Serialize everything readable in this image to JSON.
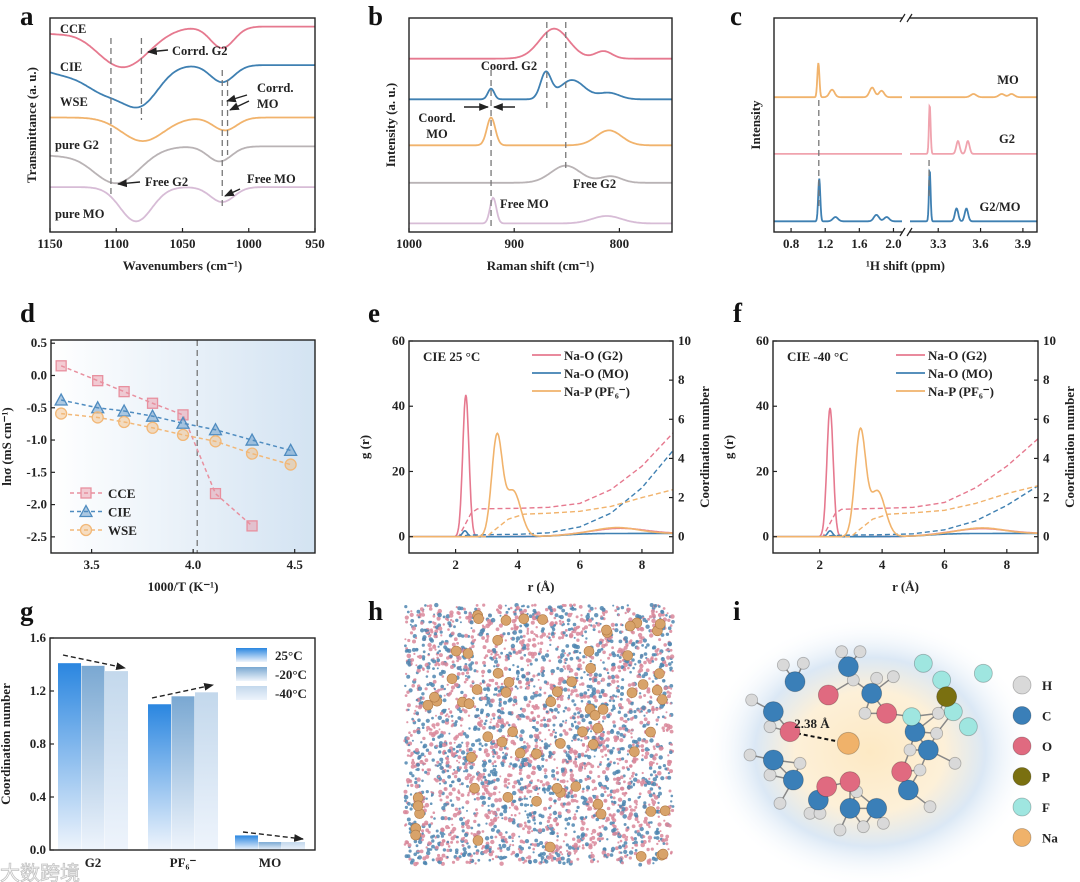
{
  "figure": {
    "panel_labels": [
      "a",
      "b",
      "c",
      "d",
      "e",
      "f",
      "g",
      "h",
      "i"
    ],
    "watermark": "大数跨境"
  },
  "chart_data": [
    {
      "type": "line",
      "panel": "a",
      "xlabel": "Wavenumbers (cm⁻¹)",
      "ylabel": "Transmittance (a. u.)",
      "xlim": [
        1150,
        950
      ],
      "ylim": [
        0,
        10
      ],
      "xticks": [
        "1150",
        "1100",
        "1050",
        "1000",
        "950"
      ],
      "series": [
        {
          "name": "CCE",
          "color": "#e6798f",
          "baseline": 9.6,
          "peaks": [
            [
              1095,
              -1.9,
              20
            ],
            [
              1020,
              -1.0,
              9
            ],
            [
              1150,
              -0.3,
              15
            ]
          ]
        },
        {
          "name": "CIE",
          "color": "#3f80b2",
          "baseline": 7.8,
          "peaks": [
            [
              1082,
              -1.8,
              14
            ],
            [
              1110,
              -1.1,
              14
            ],
            [
              1020,
              -0.8,
              9
            ],
            [
              1140,
              -0.4,
              15
            ]
          ]
        },
        {
          "name": "WSE",
          "color": "#f1b36c",
          "baseline": 5.35,
          "peaks": [
            [
              1080,
              -1.1,
              16
            ],
            [
              1018,
              -0.6,
              9
            ]
          ]
        },
        {
          "name": "pure G2",
          "color": "#b9b3b5",
          "baseline": 4.0,
          "peaks": [
            [
              1100,
              -1.7,
              18
            ],
            [
              1022,
              -0.7,
              9
            ],
            [
              1150,
              -0.4,
              20
            ]
          ]
        },
        {
          "name": "pure MO",
          "color": "#d7bcd6",
          "baseline": 2.1,
          "peaks": [
            [
              1085,
              -1.6,
              12
            ],
            [
              1020,
              -0.7,
              9
            ]
          ]
        }
      ],
      "reference_lines": [
        1104,
        1081,
        1020,
        1016
      ],
      "annotations": [
        {
          "lines": [
            "Corrd. G2"
          ]
        },
        {
          "lines": [
            "Corrd.",
            "MO"
          ]
        },
        {
          "lines": [
            "Free G2"
          ]
        },
        {
          "lines": [
            "Free MO"
          ]
        }
      ]
    },
    {
      "type": "line",
      "panel": "b",
      "xlabel": "Raman shift (cm⁻¹)",
      "ylabel": "Intensity (a. u.)",
      "xlim": [
        1000,
        750
      ],
      "ylim": [
        0,
        10
      ],
      "xticks": [
        "1000",
        "900",
        "800"
      ],
      "series": [
        {
          "name": "CCE",
          "color": "#e6798f",
          "baseline": 8.1,
          "peaks": [
            [
              862,
              1.4,
              14
            ],
            [
              815,
              0.35,
              8
            ]
          ]
        },
        {
          "name": "CIE",
          "color": "#3f80b2",
          "baseline": 6.2,
          "peaks": [
            [
              922,
              0.5,
              3
            ],
            [
              870,
              1.2,
              5
            ],
            [
              845,
              0.9,
              12
            ],
            [
              810,
              0.3,
              10
            ]
          ]
        },
        {
          "name": "WSE",
          "color": "#f1b36c",
          "baseline": 4.05,
          "peaks": [
            [
              922,
              1.3,
              4
            ],
            [
              810,
              0.7,
              12
            ]
          ]
        },
        {
          "name": "pure G2",
          "color": "#b9b3b5",
          "baseline": 2.3,
          "peaks": [
            [
              851,
              0.8,
              14
            ],
            [
              808,
              0.3,
              10
            ]
          ]
        },
        {
          "name": "pure MO",
          "color": "#d7bcd6",
          "baseline": 0.4,
          "peaks": [
            [
              920,
              1.2,
              3
            ],
            [
              812,
              0.35,
              14
            ]
          ]
        }
      ],
      "reference_lines": [
        922,
        869,
        851
      ],
      "annotations": [
        {
          "lines": [
            "Coord. G2"
          ]
        },
        {
          "lines": [
            "Coord.",
            "MO"
          ]
        },
        {
          "lines": [
            "Free G2"
          ]
        },
        {
          "lines": [
            "Free MO"
          ]
        }
      ]
    },
    {
      "type": "line",
      "panel": "c",
      "xlabel": "¹H shift (ppm)",
      "ylabel": "Intensity",
      "xlim_segments": [
        [
          0.6,
          2.1
        ],
        [
          3.1,
          4.0
        ]
      ],
      "ylim": [
        0,
        10
      ],
      "xticks": [
        "0.8",
        "1.2",
        "1.6",
        "2.0",
        "3.3",
        "3.6",
        "3.9"
      ],
      "series": [
        {
          "name": "MO",
          "color": "#f1b36c",
          "baseline": 6.3,
          "peaks": [
            [
              1.12,
              1.6,
              0.012
            ],
            [
              1.28,
              0.35,
              0.03
            ],
            [
              1.75,
              0.45,
              0.03
            ],
            [
              1.86,
              0.3,
              0.03
            ],
            [
              3.55,
              0.15,
              0.02
            ],
            [
              3.75,
              0.15,
              0.02
            ],
            [
              3.82,
              0.15,
              0.02
            ]
          ]
        },
        {
          "name": "G2",
          "color": "#f0a3ae",
          "baseline": 3.65,
          "peaks": [
            [
              3.24,
              2.3,
              0.006
            ],
            [
              3.44,
              0.6,
              0.012
            ],
            [
              3.51,
              0.6,
              0.012
            ]
          ]
        },
        {
          "name": "G2/MO",
          "color": "#3f80b2",
          "baseline": 0.5,
          "peaks": [
            [
              1.13,
              2.0,
              0.012
            ],
            [
              1.32,
              0.2,
              0.03
            ],
            [
              1.8,
              0.3,
              0.03
            ],
            [
              1.92,
              0.2,
              0.03
            ],
            [
              3.24,
              2.4,
              0.006
            ],
            [
              3.43,
              0.6,
              0.012
            ],
            [
              3.5,
              0.6,
              0.012
            ]
          ]
        }
      ],
      "reference_lines": [
        1.12,
        3.24
      ]
    },
    {
      "type": "line",
      "panel": "d",
      "xlabel": "1000/T (K⁻¹)",
      "ylabel": "lnσ (mS cm⁻¹)",
      "xlim": [
        3.3,
        4.6
      ],
      "ylim": [
        -2.75,
        0.55
      ],
      "xticks": [
        "3.5",
        "4.0",
        "4.5"
      ],
      "yticks": [
        "0.5",
        "0.0",
        "-0.5",
        "-1.0",
        "-1.5",
        "-2.0",
        "-2.5"
      ],
      "reference_lines": [
        4.02
      ],
      "legend_position": "bottom-left",
      "series": [
        {
          "name": "CCE",
          "marker": "square",
          "color": "#e8909f",
          "x": [
            3.35,
            3.53,
            3.66,
            3.8,
            3.95,
            4.11,
            4.29
          ],
          "y": [
            0.15,
            -0.08,
            -0.25,
            -0.43,
            -0.61,
            -1.83,
            -2.33
          ]
        },
        {
          "name": "CIE",
          "marker": "triangle",
          "color": "#4f8cc0",
          "x": [
            3.35,
            3.53,
            3.66,
            3.8,
            3.95,
            4.11,
            4.29,
            4.48
          ],
          "y": [
            -0.38,
            -0.5,
            -0.55,
            -0.63,
            -0.74,
            -0.84,
            -1.0,
            -1.16
          ]
        },
        {
          "name": "WSE",
          "marker": "circle",
          "color": "#f2b878",
          "x": [
            3.35,
            3.53,
            3.66,
            3.8,
            3.95,
            4.11,
            4.29,
            4.48
          ],
          "y": [
            -0.59,
            -0.65,
            -0.72,
            -0.81,
            -0.92,
            -1.02,
            -1.21,
            -1.38
          ]
        }
      ]
    },
    {
      "type": "line",
      "panel": "e",
      "title": "CIE  25 °C",
      "xlabel": "r (Å)",
      "ylabel": "g (r)",
      "y2label": "Coordination number",
      "xlim": [
        0.5,
        9
      ],
      "ylim": [
        -5,
        60
      ],
      "y2lim": [
        -0.833,
        10
      ],
      "xticks": [
        "2",
        "4",
        "6",
        "8"
      ],
      "yticks": [
        "0",
        "20",
        "40",
        "60"
      ],
      "y2ticks": [
        "0",
        "2",
        "4",
        "6",
        "8",
        "10"
      ],
      "legend_position": "top-right",
      "series": [
        {
          "name": "Na-O (G2)",
          "color": "#e6798f",
          "peaks": [
            [
              2.33,
              43.5,
              0.1
            ],
            [
              7.3,
              1.6,
              0.8
            ]
          ],
          "cn": [
            [
              2.1,
              0
            ],
            [
              2.3,
              0.6
            ],
            [
              2.5,
              1.2
            ],
            [
              2.7,
              1.42
            ],
            [
              4,
              1.45
            ],
            [
              5,
              1.5
            ],
            [
              6,
              1.7
            ],
            [
              7,
              2.4
            ],
            [
              8,
              3.6
            ],
            [
              9,
              5.3
            ]
          ]
        },
        {
          "name": "Na-O (MO)",
          "color": "#3f80b2",
          "peaks": [
            [
              2.3,
              1.8,
              0.08
            ]
          ],
          "cn": [
            [
              2.1,
              0
            ],
            [
              2.4,
              0.08
            ],
            [
              3,
              0.1
            ],
            [
              4,
              0.12
            ],
            [
              5,
              0.2
            ],
            [
              6,
              0.5
            ],
            [
              7,
              1.2
            ],
            [
              8,
              2.5
            ],
            [
              9,
              4.4
            ]
          ]
        },
        {
          "name": "Na-P (PF₆⁻)",
          "color": "#f1b36c",
          "peaks": [
            [
              3.33,
              30,
              0.17
            ],
            [
              3.85,
              14,
              0.25
            ],
            [
              7.2,
              1.8,
              0.7
            ]
          ],
          "cn": [
            [
              3,
              0
            ],
            [
              3.3,
              0.4
            ],
            [
              3.7,
              0.9
            ],
            [
              4.2,
              1.15
            ],
            [
              5,
              1.2
            ],
            [
              6,
              1.3
            ],
            [
              7,
              1.55
            ],
            [
              8,
              2.0
            ],
            [
              9,
              2.4
            ]
          ]
        }
      ]
    },
    {
      "type": "line",
      "panel": "f",
      "title": "CIE  -40 °C",
      "xlabel": "r (Å)",
      "ylabel": "g (r)",
      "y2label": "Coordination number",
      "xlim": [
        0.5,
        9
      ],
      "ylim": [
        -5,
        60
      ],
      "y2lim": [
        -0.833,
        10
      ],
      "xticks": [
        "2",
        "4",
        "6",
        "8"
      ],
      "yticks": [
        "0",
        "20",
        "40",
        "60"
      ],
      "y2ticks": [
        "0",
        "2",
        "4",
        "6",
        "8",
        "10"
      ],
      "legend_position": "top-right",
      "series": [
        {
          "name": "Na-O (G2)",
          "color": "#e6798f",
          "peaks": [
            [
              2.33,
              39.5,
              0.1
            ],
            [
              7.2,
              1.5,
              0.8
            ]
          ],
          "cn": [
            [
              2.1,
              0
            ],
            [
              2.3,
              0.6
            ],
            [
              2.5,
              1.2
            ],
            [
              2.7,
              1.4
            ],
            [
              4,
              1.45
            ],
            [
              5,
              1.5
            ],
            [
              6,
              1.75
            ],
            [
              7,
              2.5
            ],
            [
              8,
              3.6
            ],
            [
              9,
              5.0
            ]
          ]
        },
        {
          "name": "Na-O (MO)",
          "color": "#3f80b2",
          "peaks": [
            [
              2.33,
              1.8,
              0.08
            ]
          ],
          "cn": [
            [
              2.1,
              0
            ],
            [
              2.4,
              0.06
            ],
            [
              3,
              0.08
            ],
            [
              4,
              0.1
            ],
            [
              5,
              0.15
            ],
            [
              6,
              0.35
            ],
            [
              7,
              0.8
            ],
            [
              8,
              1.6
            ],
            [
              9,
              2.6
            ]
          ]
        },
        {
          "name": "Na-P (PF₆⁻)",
          "color": "#f1b36c",
          "peaks": [
            [
              3.3,
              32,
              0.17
            ],
            [
              3.85,
              14,
              0.25
            ],
            [
              7.2,
              1.7,
              0.7
            ]
          ],
          "cn": [
            [
              3,
              0
            ],
            [
              3.3,
              0.4
            ],
            [
              3.7,
              0.9
            ],
            [
              4.2,
              1.15
            ],
            [
              5,
              1.22
            ],
            [
              6,
              1.35
            ],
            [
              7,
              1.7
            ],
            [
              8,
              2.2
            ],
            [
              9,
              2.6
            ]
          ]
        }
      ]
    },
    {
      "type": "bar",
      "panel": "g",
      "ylabel": "Coordination number",
      "categories": [
        "G2",
        "PF₆⁻",
        "MO"
      ],
      "ylim": [
        0,
        1.6
      ],
      "yticks": [
        "0.0",
        "0.4",
        "0.8",
        "1.2",
        "1.6"
      ],
      "legend_position": "top-right",
      "series": [
        {
          "name": "25°C",
          "color": "#2a86e0",
          "values": [
            1.41,
            1.1,
            0.11
          ]
        },
        {
          "name": "-20°C",
          "color": "#7aa8d2",
          "values": [
            1.39,
            1.16,
            0.06
          ]
        },
        {
          "name": "-40°C",
          "color": "#c3d8ec",
          "values": [
            1.35,
            1.19,
            0.06
          ]
        }
      ]
    }
  ],
  "panels": {
    "h": {
      "description_label": "h"
    },
    "i": {
      "distance_label": "2.38 Å",
      "legend": [
        {
          "element": "H",
          "color": "#d9d9d9"
        },
        {
          "element": "C",
          "color": "#3a7fb8"
        },
        {
          "element": "O",
          "color": "#e06a80"
        },
        {
          "element": "P",
          "color": "#7a7010"
        },
        {
          "element": "F",
          "color": "#9fe6e0"
        },
        {
          "element": "Na",
          "color": "#f0b26a"
        }
      ]
    }
  }
}
